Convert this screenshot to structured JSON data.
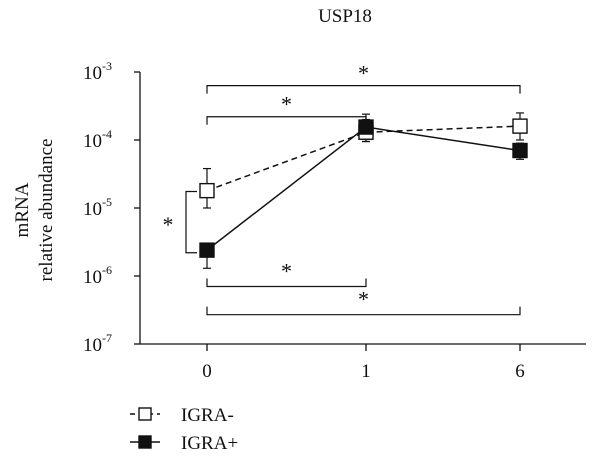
{
  "chart_data": {
    "type": "line",
    "title": "USP18",
    "ylabel_lines": [
      "mRNA",
      "relative abundance"
    ],
    "xlabel": "",
    "categories": [
      "0",
      "1",
      "6"
    ],
    "y_scale": "log",
    "ylim": [
      1e-07,
      0.001
    ],
    "y_ticks": [
      {
        "base": "10",
        "exp": "-3"
      },
      {
        "base": "10",
        "exp": "-4"
      },
      {
        "base": "10",
        "exp": "-5"
      },
      {
        "base": "10",
        "exp": "-6"
      },
      {
        "base": "10",
        "exp": "-7"
      }
    ],
    "series": [
      {
        "name": "IGRA-",
        "values": [
          1.8e-05,
          0.00013,
          0.00016
        ],
        "err_low": [
          1e-05,
          9.5e-05,
          0.0001
        ],
        "err_high": [
          3.8e-05,
          0.0002,
          0.00025
        ],
        "line_style": "dashed",
        "marker": "open-square"
      },
      {
        "name": "IGRA+",
        "values": [
          2.4e-06,
          0.000155,
          7e-05
        ],
        "err_low": [
          1.3e-06,
          9.5e-05,
          5.2e-05
        ],
        "err_high": [
          3e-06,
          0.00024,
          9e-05
        ],
        "line_style": "solid",
        "marker": "filled-square"
      }
    ],
    "significance": [
      {
        "label": "*",
        "from": "0",
        "to": "6",
        "level": 0.00063,
        "side": "above"
      },
      {
        "label": "*",
        "from": "0",
        "to": "1",
        "level": 0.00022,
        "side": "above"
      },
      {
        "label": "*",
        "from": "0",
        "to": "1",
        "level": 7e-07,
        "side": "below"
      },
      {
        "label": "*",
        "from": "0",
        "to": "6",
        "level": 2.7e-07,
        "side": "below"
      },
      {
        "label": "*",
        "at": "0",
        "range": [
          2.2e-06,
          1.75e-05
        ],
        "side": "left"
      }
    ],
    "legend": {
      "placement": "bottom-left"
    },
    "grid": false
  }
}
